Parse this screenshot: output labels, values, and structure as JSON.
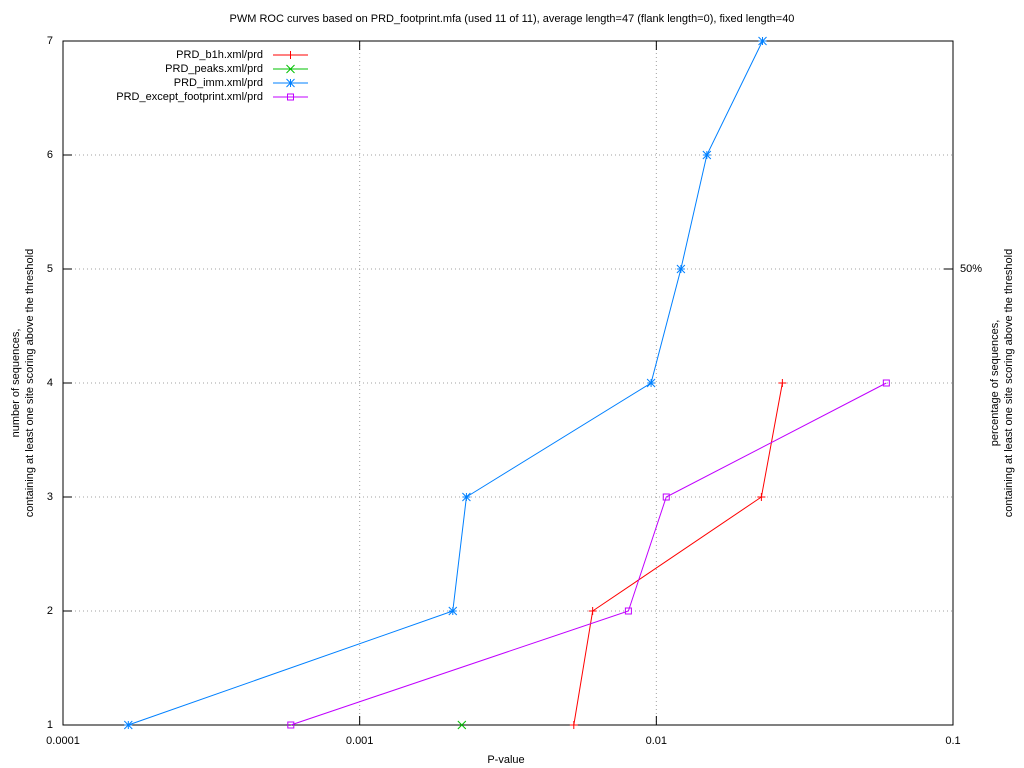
{
  "chart_data": {
    "type": "line",
    "title": "PWM ROC curves based on PRD_footprint.mfa (used 11 of 11), average length=47 (flank length=0), fixed length=40",
    "xlabel": "P-value",
    "ylabel": [
      "number of sequences,",
      "containing at least one site scoring above the threshold"
    ],
    "y2label": [
      "percentage of sequences,",
      "containing at least one site scoring above the threshold"
    ],
    "xscale": "log",
    "xlim": [
      0.0001,
      0.1
    ],
    "xticks": [
      0.0001,
      0.001,
      0.01,
      0.1
    ],
    "ylim": [
      1,
      7
    ],
    "yticks": [
      1,
      2,
      3,
      4,
      5,
      6,
      7
    ],
    "y2lim": [
      10,
      70
    ],
    "y2ticks": [
      {
        "value": 50,
        "label": "50%"
      }
    ],
    "grid": true,
    "legend": "upper-left",
    "series": [
      {
        "name": "PRD_b1h.xml/prd",
        "color": "#ff0000",
        "marker": "plus",
        "x": [
          0.00527,
          0.0061,
          0.0226,
          0.0266
        ],
        "values": [
          1,
          2,
          3,
          4
        ]
      },
      {
        "name": "PRD_peaks.xml/prd",
        "color": "#00c000",
        "marker": "cross",
        "x": [
          0.00221
        ],
        "values": [
          1
        ]
      },
      {
        "name": "PRD_imm.xml/prd",
        "color": "#0080ff",
        "marker": "star",
        "x": [
          0.000166,
          0.00206,
          0.00229,
          0.0096,
          0.0121,
          0.0148,
          0.0228
        ],
        "values": [
          1,
          2,
          3,
          4,
          5,
          6,
          7
        ]
      },
      {
        "name": "PRD_except_footprint.xml/prd",
        "color": "#c000ff",
        "marker": "square",
        "x": [
          0.000586,
          0.00805,
          0.0108,
          0.0596
        ],
        "values": [
          1,
          2,
          3,
          4
        ]
      }
    ]
  }
}
